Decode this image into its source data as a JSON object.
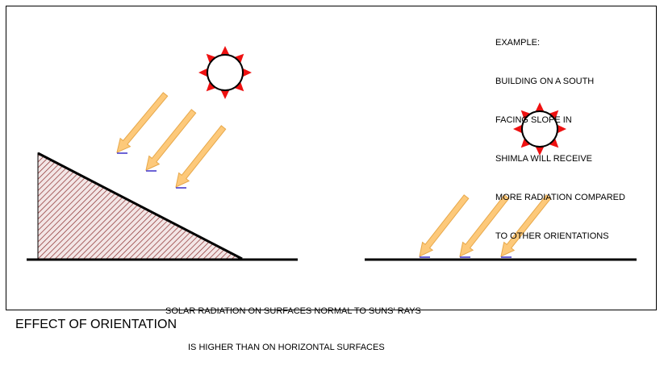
{
  "example_note": {
    "lines": [
      "EXAMPLE:",
      "BUILDING ON A SOUTH",
      "FACING SLOPE IN",
      "SHIMLA WILL RECEIVE",
      "MORE RADIATION COMPARED",
      "TO OTHER ORIENTATIONS"
    ]
  },
  "caption": {
    "line1": "SOLAR RADIATION ON SURFACES NORMAL TO SUNS' RAYS",
    "line2": "IS HIGHER THAN ON HORIZONTAL SURFACES"
  },
  "footer_title": "EFFECT OF ORIENTATION",
  "colors": {
    "sun_rays": "#ee1111",
    "arrow_fill": "#fdc97a",
    "arrow_stroke": "#e7a84a",
    "arrow_tip": "#3b2fc9",
    "hatch": "#8a2c2c",
    "slope_fill": "#f3e6e6"
  },
  "icons": [
    "sun-icon",
    "ray-arrow-icon"
  ]
}
